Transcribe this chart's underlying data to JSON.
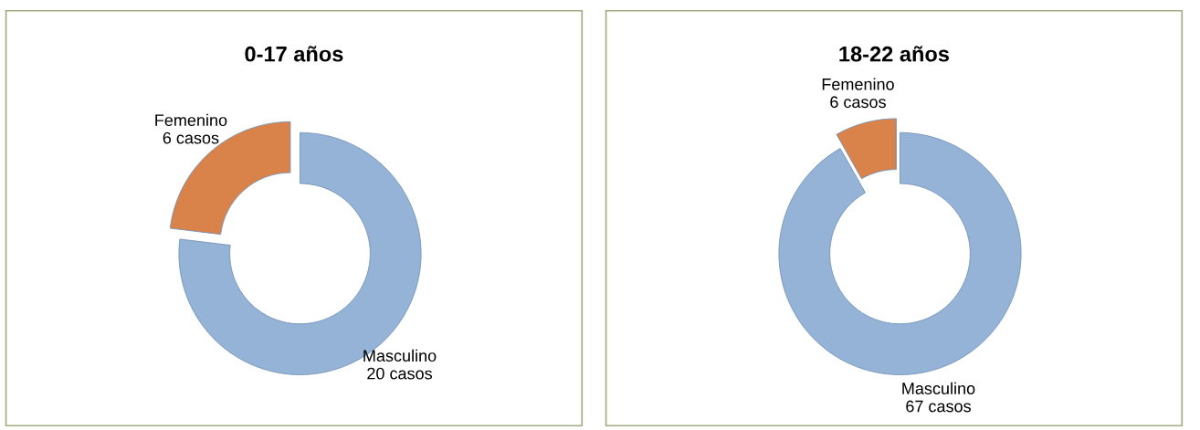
{
  "chart_data": [
    {
      "type": "donut",
      "title": "0-17 años",
      "categories": [
        "Masculino",
        "Femenino"
      ],
      "values": [
        20,
        6
      ],
      "value_labels": [
        "20 casos",
        "6 casos"
      ],
      "colors": [
        "#95b3d7",
        "#d9824a"
      ]
    },
    {
      "type": "donut",
      "title": "18-22 años",
      "categories": [
        "Masculino",
        "Femenino"
      ],
      "values": [
        67,
        6
      ],
      "value_labels": [
        "67 casos",
        "6 casos"
      ],
      "colors": [
        "#95b3d7",
        "#d9824a"
      ]
    }
  ]
}
